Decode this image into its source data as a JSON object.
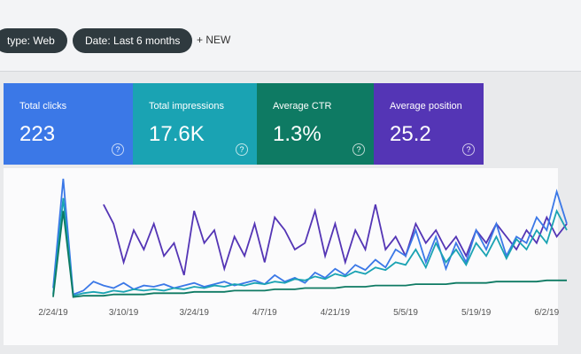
{
  "toolbar": {
    "filters": [
      "type: Web",
      "Date: Last 6 months"
    ],
    "new_button": "NEW"
  },
  "metrics": [
    {
      "label": "Total clicks",
      "value": "223",
      "color": "#3b78e7"
    },
    {
      "label": "Total impressions",
      "value": "17.6K",
      "color": "#1aa3b3"
    },
    {
      "label": "Average CTR",
      "value": "1.3%",
      "color": "#0e7a63"
    },
    {
      "label": "Average position",
      "value": "25.2",
      "color": "#5435b5"
    }
  ],
  "chart_data": {
    "type": "line",
    "categories": [
      "2/24/19",
      null,
      null,
      null,
      null,
      null,
      null,
      "3/10/19",
      null,
      null,
      null,
      null,
      null,
      null,
      "3/24/19",
      null,
      null,
      null,
      null,
      null,
      null,
      "4/7/19",
      null,
      null,
      null,
      null,
      null,
      null,
      "4/21/19",
      null,
      null,
      null,
      null,
      null,
      null,
      "5/5/19",
      null,
      null,
      null,
      null,
      null,
      null,
      "5/19/19",
      null,
      null,
      null,
      null,
      null,
      null,
      "6/2/19",
      null,
      null
    ],
    "series": [
      {
        "color": "#5435b5",
        "values": [
          null,
          null,
          null,
          null,
          null,
          75,
          60,
          30,
          55,
          40,
          60,
          35,
          45,
          20,
          70,
          45,
          55,
          25,
          50,
          35,
          60,
          30,
          65,
          55,
          40,
          45,
          70,
          35,
          60,
          30,
          55,
          40,
          75,
          40,
          50,
          35,
          60,
          45,
          55,
          40,
          50,
          35,
          55,
          45,
          60,
          50,
          40,
          55,
          45,
          65,
          50,
          60
        ]
      },
      {
        "color": "#3b78e7",
        "values": [
          10,
          95,
          5,
          8,
          15,
          12,
          10,
          14,
          9,
          12,
          11,
          13,
          10,
          12,
          14,
          11,
          13,
          15,
          12,
          14,
          16,
          13,
          20,
          15,
          18,
          14,
          22,
          18,
          25,
          20,
          28,
          24,
          32,
          26,
          40,
          35,
          55,
          30,
          50,
          25,
          45,
          30,
          55,
          40,
          60,
          35,
          50,
          45,
          65,
          55,
          85,
          60
        ]
      },
      {
        "color": "#1aa3b3",
        "values": [
          5,
          80,
          4,
          6,
          7,
          6,
          8,
          7,
          9,
          8,
          9,
          8,
          10,
          9,
          11,
          10,
          12,
          11,
          13,
          12,
          14,
          13,
          15,
          14,
          17,
          16,
          19,
          17,
          21,
          19,
          23,
          21,
          26,
          24,
          30,
          28,
          40,
          26,
          45,
          30,
          40,
          28,
          45,
          35,
          50,
          33,
          48,
          40,
          55,
          45,
          70,
          55
        ]
      },
      {
        "color": "#0e7a63",
        "values": [
          3,
          70,
          3,
          4,
          4,
          4,
          5,
          5,
          5,
          5,
          6,
          6,
          6,
          6,
          7,
          7,
          7,
          7,
          8,
          8,
          8,
          8,
          9,
          9,
          9,
          10,
          10,
          10,
          10,
          11,
          11,
          11,
          12,
          12,
          12,
          12,
          13,
          13,
          13,
          13,
          14,
          14,
          14,
          14,
          15,
          15,
          15,
          15,
          15,
          16,
          16,
          16
        ]
      }
    ]
  }
}
